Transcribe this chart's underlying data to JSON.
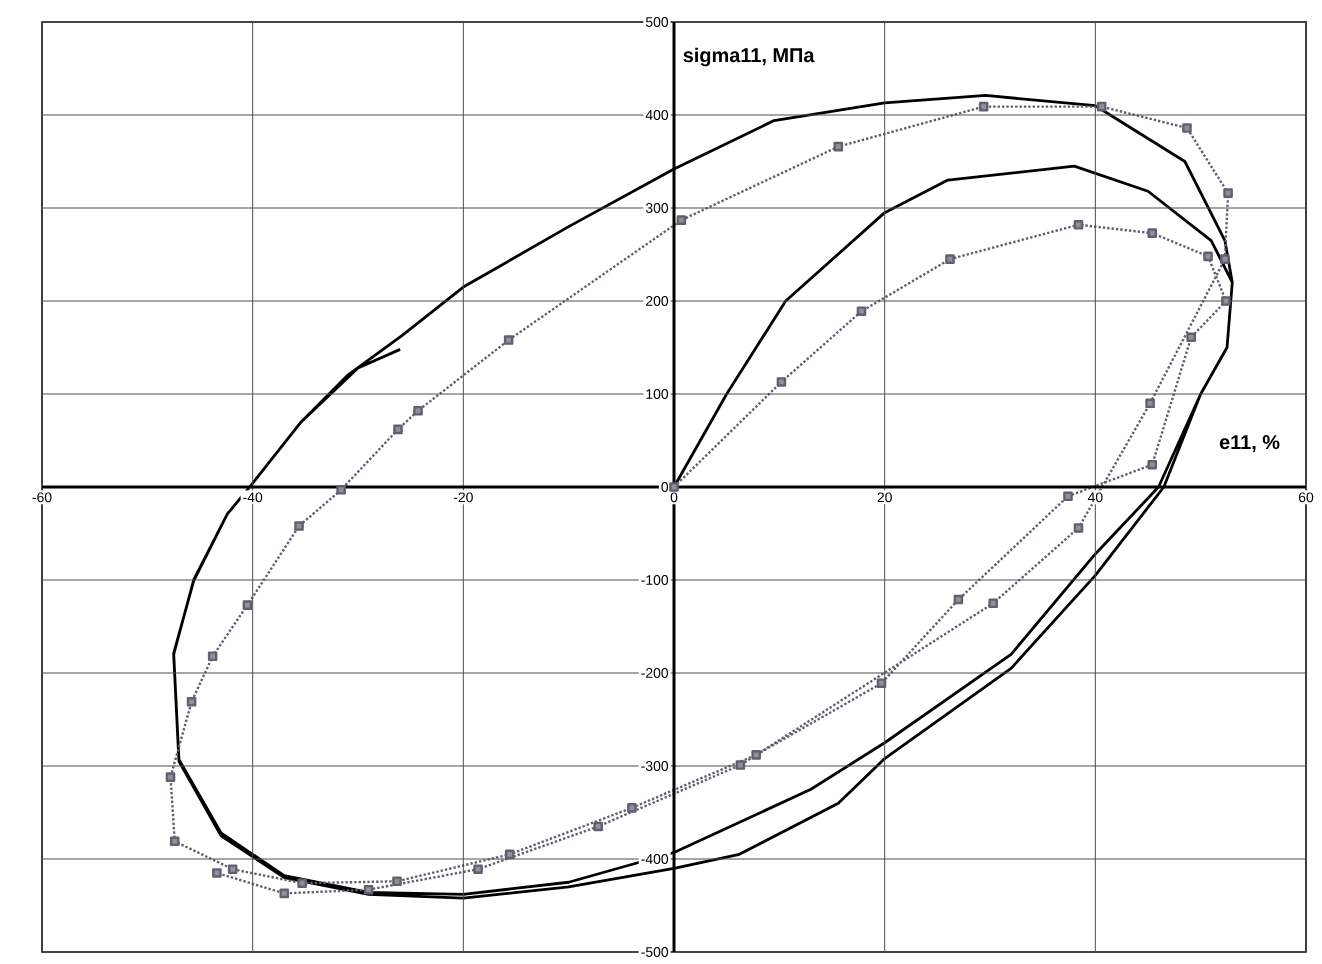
{
  "chart_data": {
    "type": "line",
    "xlabel": "e11, %",
    "ylabel": "sigma11, МПа",
    "xlim": [
      -60,
      60
    ],
    "ylim": [
      -500,
      500
    ],
    "xticks": [
      -60,
      -40,
      -20,
      0,
      20,
      40,
      60
    ],
    "yticks": [
      -500,
      -400,
      -300,
      -200,
      -100,
      0,
      100,
      200,
      300,
      400,
      500
    ],
    "grid": true,
    "series": [
      {
        "color": "#000000",
        "line_style": "solid",
        "marker": "none",
        "x": [
          0,
          5,
          10.6,
          20,
          26,
          38,
          45,
          51,
          53,
          52.5,
          50,
          46,
          40,
          32,
          20,
          13,
          0,
          -10,
          -20,
          -29,
          -37,
          -43,
          -47,
          -47.5,
          -45.6,
          -42.4,
          -40,
          -35.4,
          -31,
          -25.8,
          -20,
          -10,
          0,
          9.5,
          20,
          29.6,
          40,
          48.5,
          52.3,
          53,
          52.5,
          50,
          46.5,
          40,
          32,
          20,
          15.6,
          6.2,
          0,
          -10,
          -20,
          -29,
          -37,
          -43,
          -47,
          -47.5,
          -45.6,
          -42.4,
          -40,
          -35.4,
          -30,
          -26
        ],
        "values": [
          0,
          100,
          200,
          295,
          330,
          345,
          318,
          265,
          220,
          150,
          100,
          0,
          -72,
          -180,
          -275,
          -325,
          -393,
          -425,
          -438,
          -436,
          -418,
          -372,
          -293,
          -179,
          -101,
          -29,
          4,
          70,
          120,
          163,
          215,
          280,
          342,
          394,
          413,
          421,
          410,
          350,
          265,
          220,
          150,
          100,
          0,
          -95,
          -195,
          -292,
          -340,
          -395,
          -410,
          -430,
          -442,
          -438,
          -420,
          -375,
          -295,
          -180,
          -100,
          -29,
          4,
          70,
          128,
          148
        ]
      },
      {
        "color": "#606070",
        "line_style": "dotted",
        "marker": "square",
        "x": [
          0,
          10.2,
          17.8,
          26.2,
          38.4,
          45.4,
          50.7,
          52.4,
          49.1,
          45.4,
          37.4,
          27,
          19.7,
          7.8,
          -4,
          -15.6,
          -26.3,
          -35.3,
          -41.9,
          -47.4,
          -47.8,
          -45.8,
          -43.8,
          -40.5,
          -35.6,
          -31.6,
          -26.2,
          -24.3,
          -15.7,
          0.7,
          15.6,
          29.4,
          40.6,
          48.7,
          52.6,
          52.3,
          45.2,
          38.4,
          30.3,
          6.3,
          -7.2,
          -18.6,
          -29,
          -37,
          -43.4
        ],
        "values": [
          0,
          113,
          189,
          245,
          282,
          273,
          248,
          200,
          161,
          24,
          -10,
          -121,
          -211,
          -288,
          -345,
          -395,
          -424,
          -426,
          -411,
          -381,
          -312,
          -231,
          -182,
          -127,
          -42,
          -3,
          62,
          82,
          158,
          287,
          366,
          409,
          409,
          386,
          316,
          245,
          90,
          -44,
          -125,
          -299,
          -365,
          -411,
          -433,
          -437,
          -415
        ]
      }
    ]
  }
}
